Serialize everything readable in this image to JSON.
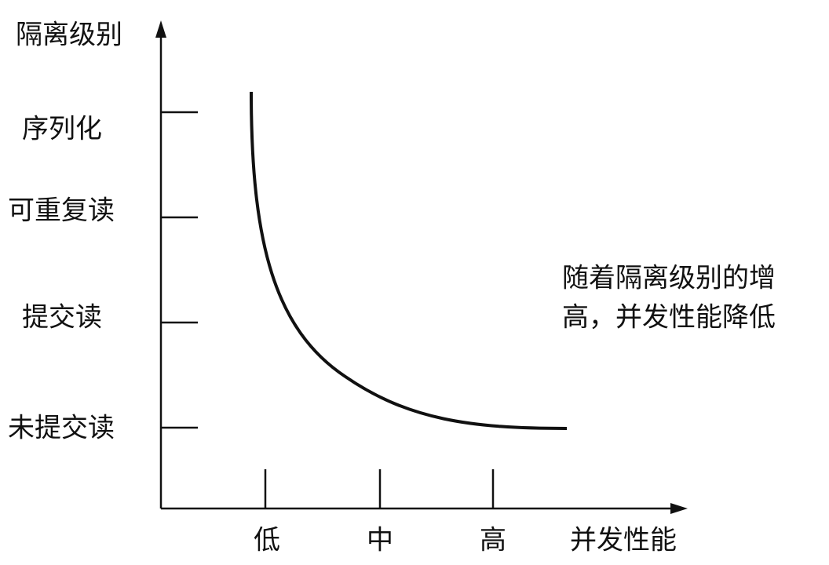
{
  "y_axis": {
    "title": "隔离级别",
    "levels": [
      "序列化",
      "可重复读",
      "提交读",
      "未提交读"
    ]
  },
  "x_axis": {
    "title": "并发性能",
    "levels": [
      "低",
      "中",
      "高"
    ]
  },
  "annotation": [
    "随着隔离级别的增",
    "高，并发性能降低"
  ]
}
